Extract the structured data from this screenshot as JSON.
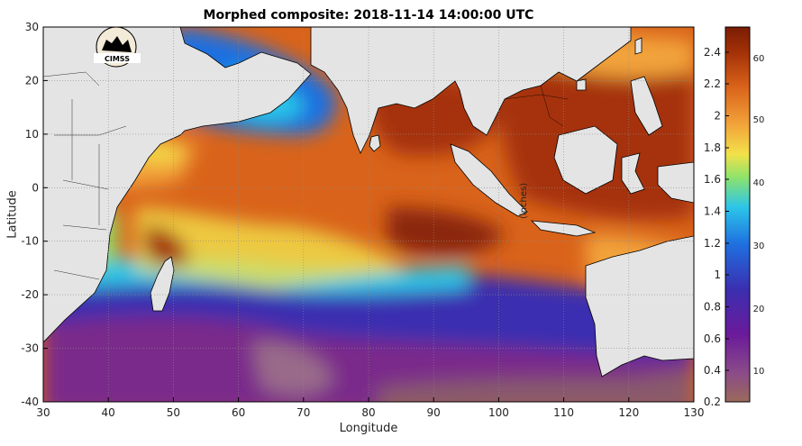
{
  "title": "Morphed composite: 2018-11-14 14:00:00 UTC",
  "xlabel": "Longitude",
  "ylabel": "Latitude",
  "logo_text": "CIMSS",
  "colorbar_label": "(inches)",
  "x_ticks": [
    30,
    40,
    50,
    60,
    70,
    80,
    90,
    100,
    110,
    120,
    130
  ],
  "y_ticks": [
    30,
    20,
    10,
    0,
    -10,
    -20,
    -30,
    -40
  ],
  "colorbar_left_ticks": [
    "2.4",
    "2.2",
    "2",
    "1.8",
    "1.6",
    "1.4",
    "1.2",
    "1",
    "0.8",
    "0.6",
    "0.4",
    "0.2"
  ],
  "colorbar_right_ticks": [
    "60",
    "50",
    "40",
    "30",
    "20",
    "10"
  ],
  "chart_data": {
    "type": "heatmap",
    "title": "Morphed composite: 2018-11-14 14:00:00 UTC",
    "xlabel": "Longitude",
    "ylabel": "Latitude",
    "xlim": [
      30,
      130
    ],
    "ylim": [
      -40,
      30
    ],
    "colorbar_inches": [
      0.2,
      2.55
    ],
    "colorbar_mm": [
      5,
      65
    ],
    "land_color": "#e4e4e4",
    "colormap": [
      "#9a6a5a",
      "#7a2a7a",
      "#3b2fb0",
      "#1f6fe0",
      "#2cc6e8",
      "#8fe36a",
      "#f2e24a",
      "#f2a33a",
      "#d9631a",
      "#a53208",
      "#7a1c04"
    ],
    "grid": true
  }
}
